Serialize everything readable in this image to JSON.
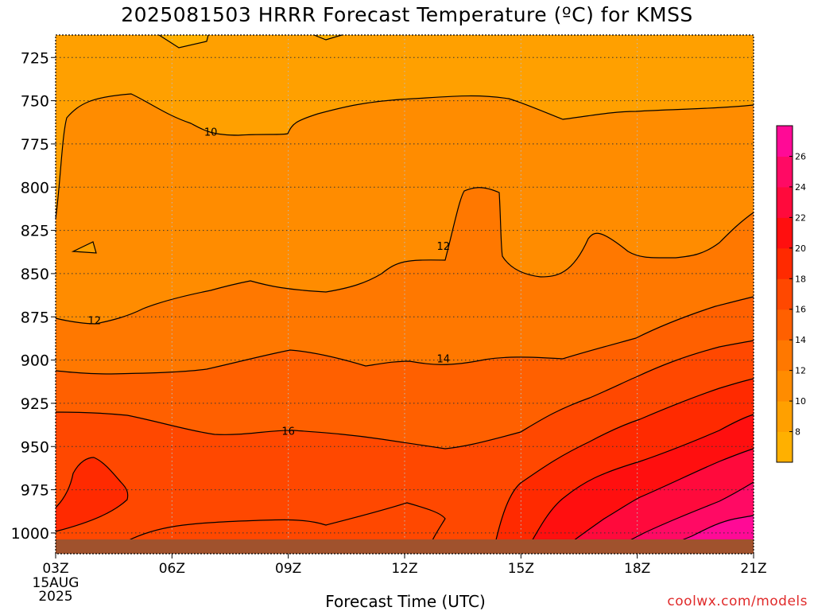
{
  "chart_data": {
    "type": "contour",
    "title": "2025081503 HRRR Forecast Temperature (ºC) for KMSS",
    "xlabel": "Forecast Time (UTC)",
    "ylabel": "",
    "x_ticks": [
      "03Z",
      "06Z",
      "09Z",
      "12Z",
      "15Z",
      "18Z",
      "21Z"
    ],
    "x_start_date_lines": [
      "15AUG",
      "2025"
    ],
    "y_ticks": [
      725,
      750,
      775,
      800,
      825,
      850,
      875,
      900,
      925,
      950,
      975,
      1000
    ],
    "y_range_hPa": [
      712,
      1012
    ],
    "y_axis_inverted": true,
    "grid": true,
    "colorbar": {
      "position": "right",
      "levels": [
        6,
        8,
        10,
        12,
        14,
        16,
        18,
        20,
        22,
        24,
        26,
        28
      ],
      "tick_labels": [
        "8",
        "10",
        "12",
        "14",
        "16",
        "18",
        "20",
        "22",
        "24",
        "26"
      ],
      "colors": [
        "#ffb000",
        "#ffa000",
        "#ff8c00",
        "#ff7800",
        "#ff6000",
        "#ff4800",
        "#ff2a00",
        "#ff0f0f",
        "#ff0a3c",
        "#ff0a64",
        "#ff0a96"
      ]
    },
    "contour_labels": [
      {
        "value": "10",
        "time": "07Z",
        "pressure": 768
      },
      {
        "value": "12",
        "time": "04Z",
        "pressure": 877
      },
      {
        "value": "12",
        "time": "13Z",
        "pressure": 834
      },
      {
        "value": "14",
        "time": "13Z",
        "pressure": 899
      },
      {
        "value": "16",
        "time": "09Z",
        "pressure": 941
      }
    ],
    "surface_color": "#a0522d"
  },
  "credit": "coolwx.com/models"
}
